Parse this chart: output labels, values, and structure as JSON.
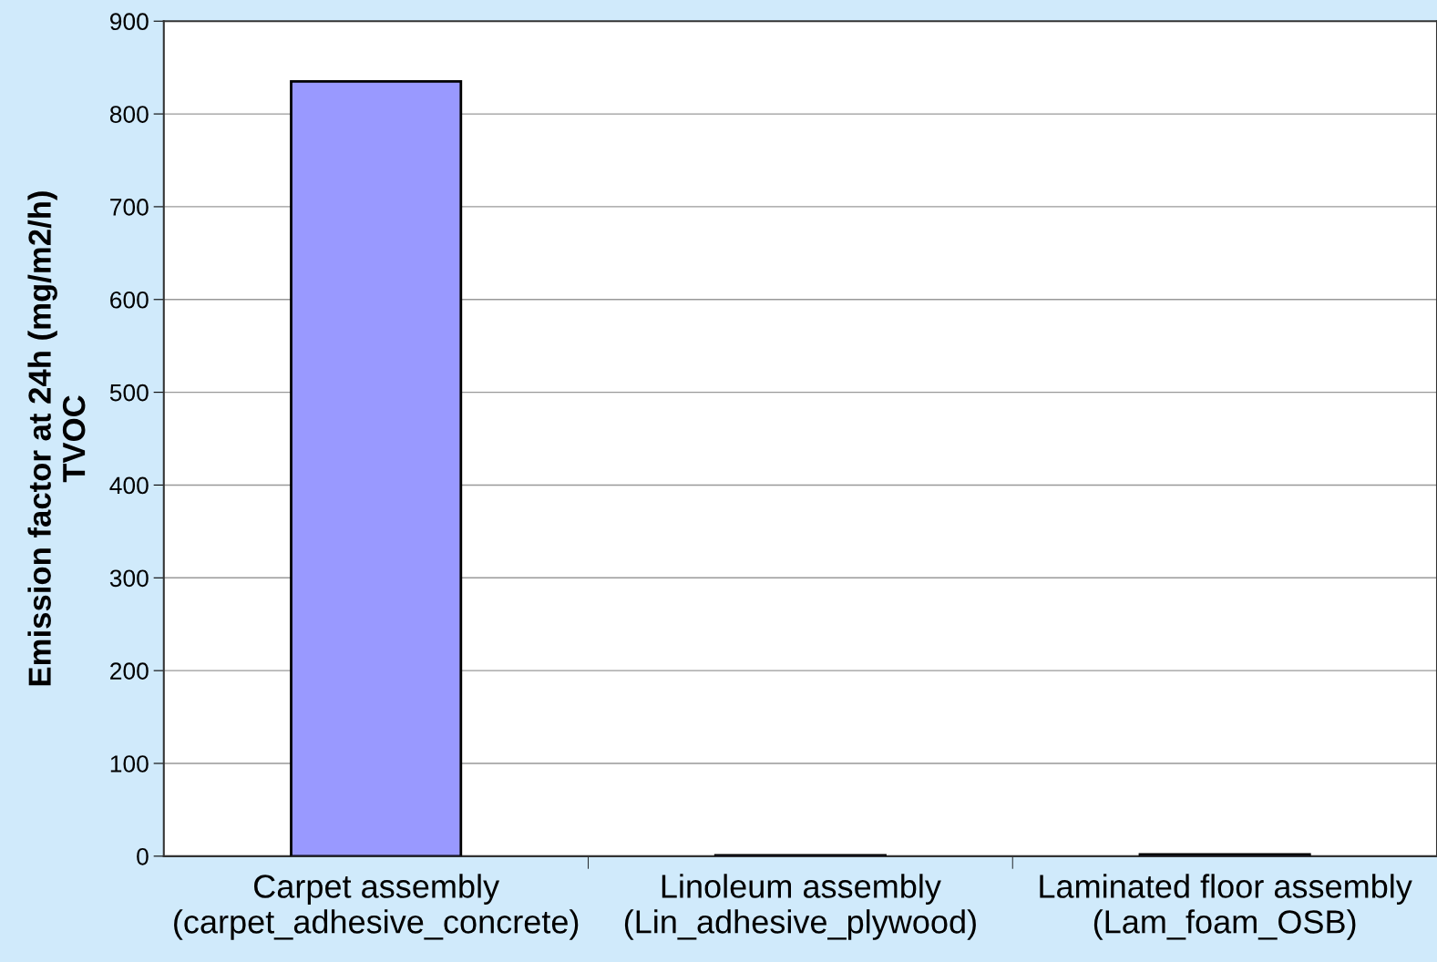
{
  "chart_data": {
    "type": "bar",
    "ylabel": "Emission factor at 24h (mg/m2/h)\nTVOC",
    "categories": [
      "Carpet assembly\n(carpet_adhesive_concrete)",
      "Linoleum assembly\n(Lin_adhesive_plywood)",
      "Laminated floor assembly\n(Lam_foam_OSB)"
    ],
    "values": [
      835,
      1,
      2
    ],
    "color": "#9999ff",
    "ylim": [
      0,
      900
    ],
    "yticks": [
      0,
      100,
      200,
      300,
      400,
      500,
      600,
      700,
      800,
      900
    ],
    "grid": "y",
    "legend": false
  }
}
